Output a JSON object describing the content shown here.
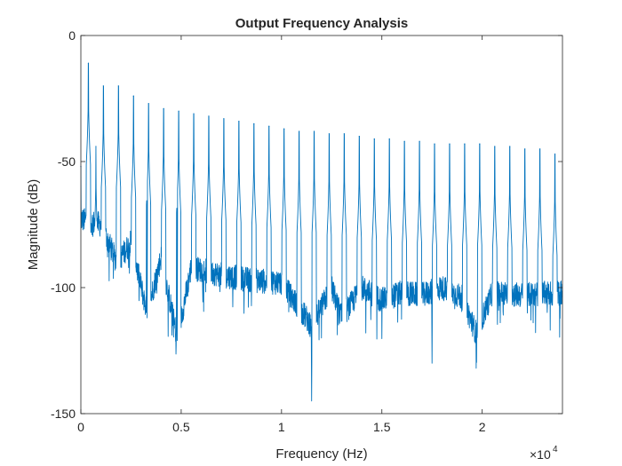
{
  "figure": {
    "background": "#ffffff",
    "axes_color": "#262626",
    "line_color": "#0072bd"
  },
  "chart_data": {
    "type": "line",
    "title": "Output Frequency Analysis",
    "xlabel": "Frequency (Hz)",
    "ylabel": "Magnitude (dB)",
    "xlim": [
      0,
      24000
    ],
    "ylim": [
      -150,
      0
    ],
    "x_ticks": [
      0,
      5000,
      10000,
      15000,
      20000
    ],
    "x_tick_labels": [
      "0",
      "0.5",
      "1",
      "1.5",
      "2"
    ],
    "x_exponent_label": "×10",
    "x_exponent_power": "4",
    "y_ticks": [
      0,
      -50,
      -100,
      -150
    ],
    "y_tick_labels": [
      "0",
      "-50",
      "-100",
      "-150"
    ],
    "grid": false,
    "box": true,
    "spectrum": {
      "fundamental_hz": 375,
      "peaks": [
        {
          "x": 0,
          "y": -52
        },
        {
          "x": 375,
          "y": -11
        },
        {
          "x": 750,
          "y": -44
        },
        {
          "x": 1125,
          "y": -20
        },
        {
          "x": 1875,
          "y": -20
        },
        {
          "x": 2625,
          "y": -24
        },
        {
          "x": 3375,
          "y": -27
        },
        {
          "x": 4125,
          "y": -29
        },
        {
          "x": 4875,
          "y": -30
        },
        {
          "x": 5625,
          "y": -31
        },
        {
          "x": 6375,
          "y": -32
        },
        {
          "x": 7125,
          "y": -33
        },
        {
          "x": 7875,
          "y": -34
        },
        {
          "x": 8625,
          "y": -35
        },
        {
          "x": 9375,
          "y": -36
        },
        {
          "x": 10125,
          "y": -37
        },
        {
          "x": 10875,
          "y": -38
        },
        {
          "x": 11625,
          "y": -38
        },
        {
          "x": 12375,
          "y": -39
        },
        {
          "x": 13125,
          "y": -39
        },
        {
          "x": 13875,
          "y": -40
        },
        {
          "x": 14625,
          "y": -41
        },
        {
          "x": 15375,
          "y": -41
        },
        {
          "x": 16125,
          "y": -42
        },
        {
          "x": 16875,
          "y": -42
        },
        {
          "x": 17625,
          "y": -43
        },
        {
          "x": 18375,
          "y": -43
        },
        {
          "x": 19125,
          "y": -43
        },
        {
          "x": 19875,
          "y": -43
        },
        {
          "x": 20625,
          "y": -44
        },
        {
          "x": 21375,
          "y": -44
        },
        {
          "x": 22125,
          "y": -45
        },
        {
          "x": 22875,
          "y": -45
        },
        {
          "x": 23625,
          "y": -47
        }
      ],
      "floor": [
        {
          "x": 0,
          "y": -73
        },
        {
          "x": 1000,
          "y": -75
        },
        {
          "x": 1800,
          "y": -90
        },
        {
          "x": 2500,
          "y": -82
        },
        {
          "x": 3300,
          "y": -110
        },
        {
          "x": 4000,
          "y": -88
        },
        {
          "x": 4800,
          "y": -120
        },
        {
          "x": 5500,
          "y": -92
        },
        {
          "x": 7000,
          "y": -95
        },
        {
          "x": 8500,
          "y": -97
        },
        {
          "x": 10000,
          "y": -98
        },
        {
          "x": 11500,
          "y": -115
        },
        {
          "x": 12500,
          "y": -100
        },
        {
          "x": 13000,
          "y": -112
        },
        {
          "x": 14000,
          "y": -100
        },
        {
          "x": 15000,
          "y": -105
        },
        {
          "x": 16000,
          "y": -102
        },
        {
          "x": 17000,
          "y": -103
        },
        {
          "x": 18000,
          "y": -100
        },
        {
          "x": 19000,
          "y": -104
        },
        {
          "x": 19700,
          "y": -118
        },
        {
          "x": 20500,
          "y": -102
        },
        {
          "x": 22000,
          "y": -103
        },
        {
          "x": 24000,
          "y": -102
        }
      ],
      "deep_dips": [
        {
          "x": 3300,
          "y": -112
        },
        {
          "x": 4800,
          "y": -121
        },
        {
          "x": 11500,
          "y": -145
        },
        {
          "x": 12900,
          "y": -113
        },
        {
          "x": 14200,
          "y": -118
        },
        {
          "x": 17500,
          "y": -130
        },
        {
          "x": 19700,
          "y": -132
        },
        {
          "x": 23500,
          "y": -107
        }
      ]
    }
  }
}
